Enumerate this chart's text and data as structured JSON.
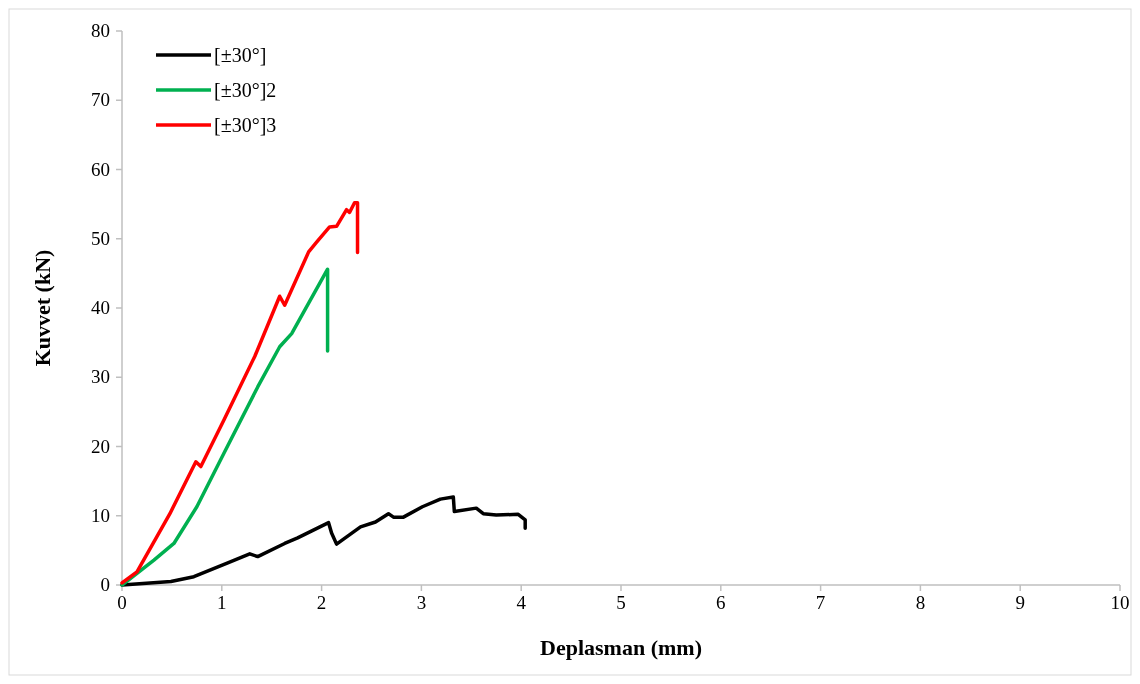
{
  "chart_data": {
    "type": "line",
    "xlabel": "Deplasman (mm)",
    "ylabel": "Kuvvet (kN)",
    "xlim": [
      0,
      10
    ],
    "xticks": [
      0,
      1,
      2,
      3,
      4,
      5,
      6,
      7,
      8,
      9,
      10
    ],
    "ylim": [
      0,
      80
    ],
    "yticks": [
      0,
      10,
      20,
      30,
      40,
      50,
      60,
      70,
      80
    ],
    "grid": false,
    "legend": "top left",
    "marker": "none",
    "line_style": "solid",
    "series": [
      {
        "name": "[±30°]",
        "color": "#000000",
        "x": [
          0,
          0.49,
          0.72,
          1.06,
          1.28,
          1.36,
          1.63,
          1.76,
          2.07,
          2.1,
          2.15,
          2.39,
          2.54,
          2.67,
          2.72,
          2.82,
          3.01,
          3.19,
          3.32,
          3.33,
          3.55,
          3.62,
          3.75,
          3.97,
          4.04,
          4.04
        ],
        "values": [
          0,
          0.5,
          1.2,
          3.2,
          4.5,
          4.1,
          6.0,
          6.8,
          9.0,
          7.5,
          5.9,
          8.4,
          9.1,
          10.3,
          9.8,
          9.8,
          11.3,
          12.4,
          12.7,
          10.6,
          11.1,
          10.3,
          10.1,
          10.2,
          9.4,
          8.2
        ]
      },
      {
        "name": "[±30°]2",
        "color": "#00b050",
        "x": [
          0,
          0.32,
          0.52,
          0.75,
          1.02,
          1.36,
          1.58,
          1.7,
          2.06,
          2.06
        ],
        "values": [
          0,
          3.6,
          6.0,
          11.3,
          19.0,
          28.6,
          34.4,
          36.3,
          45.6,
          33.8
        ]
      },
      {
        "name": "[±30°]3",
        "color": "#ff0000",
        "x": [
          0,
          0.15,
          0.48,
          0.74,
          0.79,
          1.02,
          1.33,
          1.58,
          1.63,
          1.87,
          1.95,
          2.08,
          2.15,
          2.25,
          2.28,
          2.33,
          2.36,
          2.36
        ],
        "values": [
          0.3,
          1.9,
          10.3,
          17.8,
          17.1,
          23.8,
          33.0,
          41.7,
          40.4,
          48.1,
          49.5,
          51.7,
          51.8,
          54.2,
          53.8,
          55.2,
          55.2,
          48.0
        ]
      }
    ]
  }
}
